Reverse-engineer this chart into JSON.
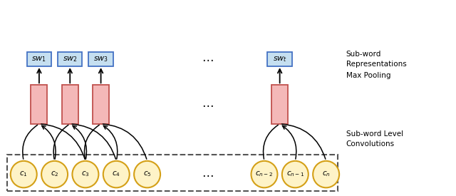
{
  "bg_color": "#ffffff",
  "ellipse_fill": "#fef3c7",
  "ellipse_edge": "#d4a017",
  "rect_fill": "#f4b8b8",
  "rect_edge": "#c0504d",
  "sw_fill": "#c5dff0",
  "sw_edge": "#4472c4",
  "dashed_box_color": "#555555",
  "char_labels": [
    "$c_1$",
    "$c_2$",
    "$c_3$",
    "$c_4$",
    "$c_5$",
    "$c_{n-2}$",
    "$c_{n-1}$",
    "$c_n$"
  ],
  "sw_labels": [
    "$sw_1$",
    "$sw_2$",
    "$sw_3$",
    "$sw_t$"
  ],
  "figw": 6.4,
  "figh": 2.75,
  "dpi": 100
}
